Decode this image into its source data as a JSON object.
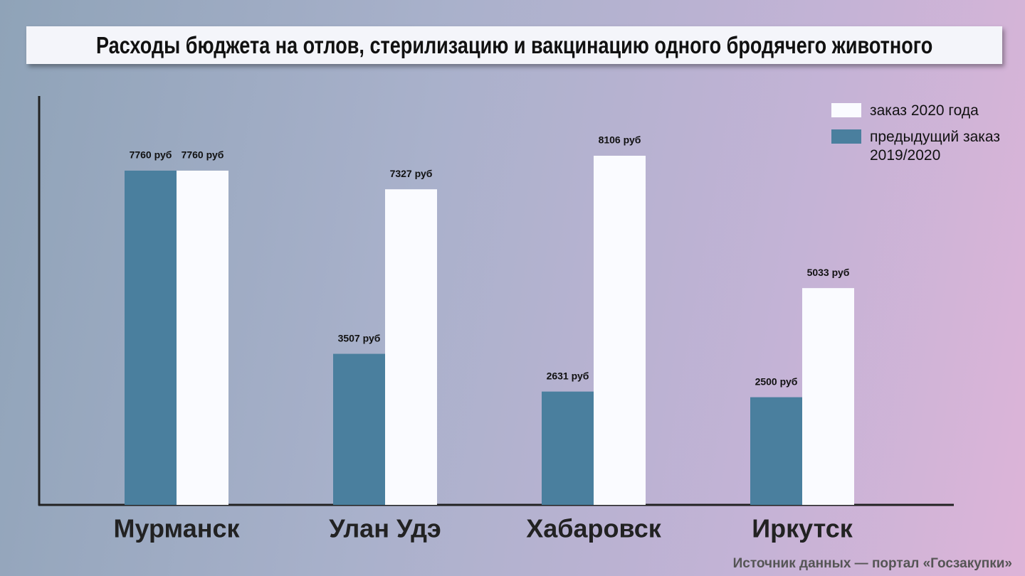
{
  "chart_data": {
    "type": "bar",
    "title": "Расходы бюджета на отлов, стерилизацию и вакцинацию одного бродячего животного",
    "categories": [
      "Мурманск",
      "Улан Удэ",
      "Хабаровск",
      "Иркутск"
    ],
    "series": [
      {
        "name": "заказ 2020 года",
        "color": "#fafbff",
        "values": [
          7760,
          7327,
          8106,
          5033
        ],
        "value_labels": [
          "7760 руб",
          "7327 руб",
          "8106 руб",
          "5033 руб"
        ]
      },
      {
        "name": "предыдущий заказ 2019/2020",
        "color": "#4a7f9e",
        "values": [
          7760,
          3507,
          2631,
          2500
        ],
        "value_labels": [
          "7760 руб",
          "3507 руб",
          "2631 руб",
          "2500 руб"
        ]
      }
    ],
    "source": "Источник данных — портал «Госзакупки»"
  }
}
